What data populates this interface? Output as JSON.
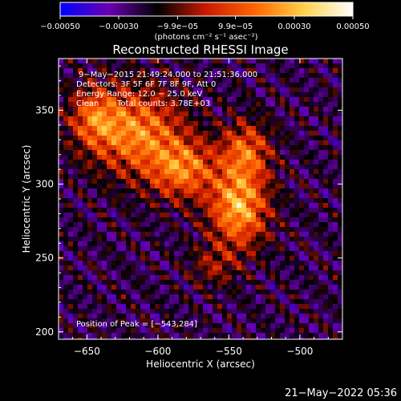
{
  "chart_data": {
    "type": "heatmap",
    "title": "Reconstructed RHESSI Image",
    "xlabel": "Heliocentric X (arcsec)",
    "ylabel": "Heliocentric Y (arcsec)",
    "xlim": [
      -670,
      -470
    ],
    "ylim": [
      195,
      385
    ],
    "x_ticks": [
      -650,
      -600,
      -550,
      -500
    ],
    "x_tick_labels": [
      "−650",
      "−600",
      "−550",
      "−500"
    ],
    "y_ticks": [
      200,
      250,
      300,
      350
    ],
    "y_tick_labels": [
      "200",
      "250",
      "300",
      "350"
    ],
    "colorbar": {
      "range": [
        -0.0005,
        0.0005
      ],
      "ticks": [
        -0.0005,
        -0.0003,
        -9.9e-05,
        9.9e-05,
        0.0003,
        0.0005
      ],
      "tick_labels": [
        "−0.00050",
        "−0.00030",
        "−9.9e−05",
        "9.9e−05",
        "0.00030",
        "0.00050"
      ],
      "units": "(photons cm⁻² s⁻¹ asec⁻²)",
      "colormap": [
        "#0000ff",
        "#6a00b0",
        "#000000",
        "#cc1a00",
        "#ff6600",
        "#ffd24a",
        "#ffffff"
      ]
    },
    "annotations": [
      "9−May−2015 21:49:24.000 to 21:51:36.000",
      "Detectors: 3F 5F 6F 7F 8F 9F, Att 0",
      "Energy Range: 12.0 − 25.0 keV",
      "Clean",
      "Total counts: 3.78E+03"
    ],
    "peak_label": "Position of Peak = [−543,284]",
    "peak": [
      -543,
      284
    ],
    "sources": [
      {
        "x": -615,
        "y": 335,
        "sx": 22,
        "sy": 20,
        "amp": 0.00042
      },
      {
        "x": -582,
        "y": 310,
        "sx": 16,
        "sy": 14,
        "amp": 0.00038
      },
      {
        "x": -543,
        "y": 284,
        "sx": 14,
        "sy": 18,
        "amp": 0.0005
      },
      {
        "x": -538,
        "y": 322,
        "sx": 12,
        "sy": 14,
        "amp": 0.00034
      },
      {
        "x": -645,
        "y": 345,
        "sx": 12,
        "sy": 14,
        "amp": 0.0003
      },
      {
        "x": -560,
        "y": 245,
        "sx": 12,
        "sy": 10,
        "amp": 0.00016
      }
    ]
  },
  "footer": {
    "date": "21−May−2022 05:36"
  }
}
